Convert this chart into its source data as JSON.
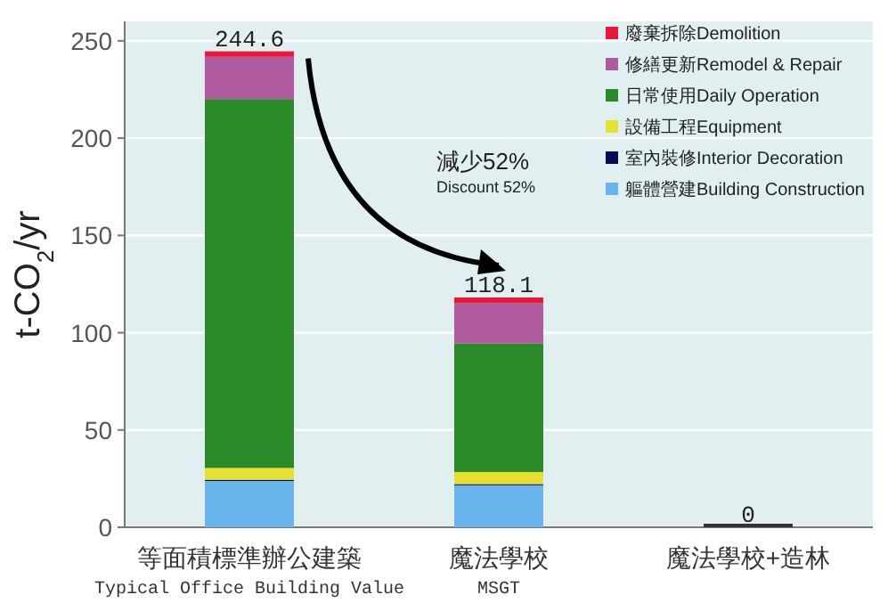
{
  "chart_data": {
    "type": "bar",
    "stacked": true,
    "categories": [
      "等面積標準辦公建築\nTypical Office Building Value",
      "魔法學校\nMSGT",
      "魔法學校+造林"
    ],
    "series": [
      {
        "name": "軀體營建Building Construction",
        "color": "#6ab4ee",
        "values": [
          23.8,
          21.6,
          0
        ]
      },
      {
        "name": "室內裝修Interior Decoration",
        "color": "#0a0a50",
        "values": [
          0.6,
          0.6,
          0
        ]
      },
      {
        "name": "設備工程Equipment",
        "color": "#e6e033",
        "values": [
          6.1,
          6.2,
          0
        ]
      },
      {
        "name": "日常使用Daily Operation",
        "color": "#2a8a2a",
        "values": [
          189.6,
          66.1,
          0
        ]
      },
      {
        "name": "修繕更新Remodel & Repair",
        "color": "#b05aa0",
        "values": [
          21.7,
          20.7,
          0
        ]
      },
      {
        "name": "廢棄拆除Demolition",
        "color": "#e8173a",
        "values": [
          2.8,
          2.9,
          0
        ]
      }
    ],
    "totals": [
      "244.6",
      "118.1",
      "0"
    ],
    "ylabel": "t-CO$_{2}$/yr",
    "ylim": [
      0,
      260
    ],
    "yticks": [
      0,
      50,
      100,
      150,
      200,
      250
    ],
    "grid": "y",
    "legend": "top right",
    "annotations": [
      "減少52%",
      "Discount 52%"
    ]
  }
}
